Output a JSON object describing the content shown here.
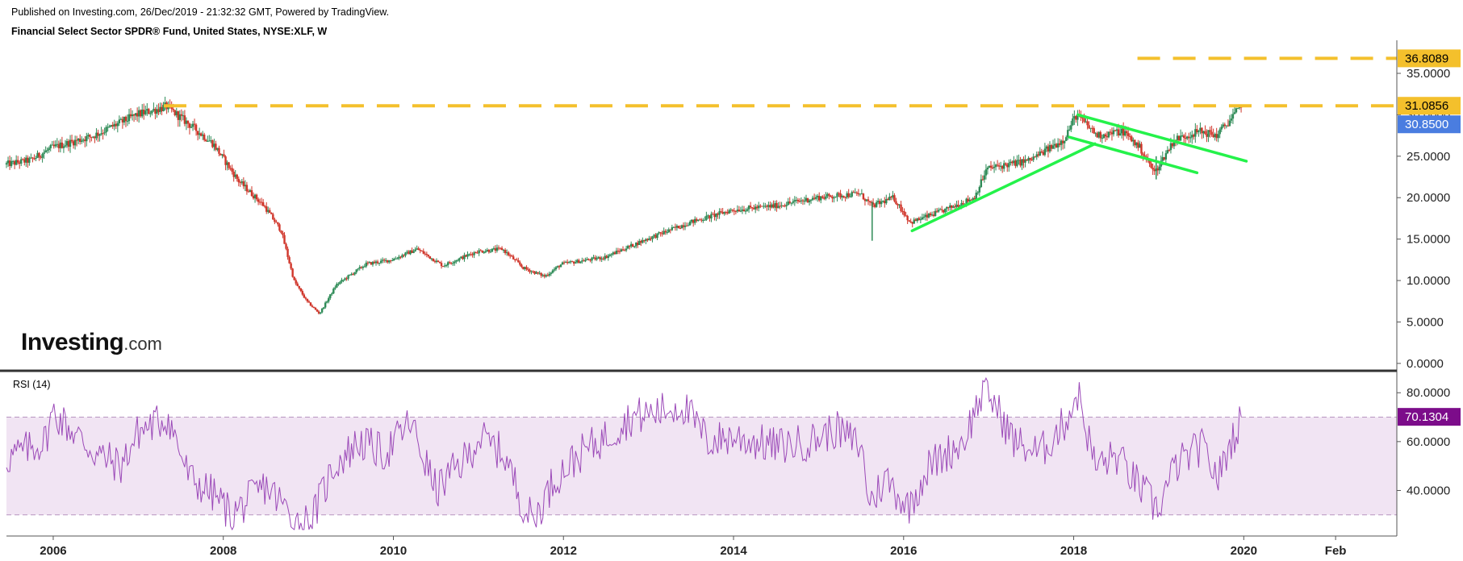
{
  "header": {
    "published": "Published on Investing.com, 26/Dec/2019 - 21:32:32 GMT, Powered by TradingView.",
    "title": "Financial Select Sector SPDR® Fund, United States, NYSE:XLF, W"
  },
  "logo": {
    "brand": "Investing",
    "suffix": ".com"
  },
  "colors": {
    "candle_up": "#2e8b57",
    "candle_down": "#d0352a",
    "resistance": "#f4c02c",
    "trend": "#24f24a",
    "price_tag": "#4a7de0",
    "rsi_line": "#9b49b8",
    "rsi_tag": "#7c0c8a",
    "rsi_band": "#f1e4f3",
    "rsi_bound": "#b895c0"
  },
  "chart_data": [
    {
      "type": "candlestick",
      "title": "Financial Select Sector SPDR® Fund, United States, NYSE:XLF, W",
      "x_range": [
        2005.45,
        2021.8
      ],
      "x_ticks": [
        {
          "x": 2006,
          "label": "2006"
        },
        {
          "x": 2008,
          "label": "2008"
        },
        {
          "x": 2010,
          "label": "2010"
        },
        {
          "x": 2012,
          "label": "2012"
        },
        {
          "x": 2014,
          "label": "2014"
        },
        {
          "x": 2016,
          "label": "2016"
        },
        {
          "x": 2018,
          "label": "2018"
        },
        {
          "x": 2020,
          "label": "2020"
        },
        {
          "x": 2021.08,
          "label": "Feb"
        }
      ],
      "ylim": [
        -0.5,
        38.5
      ],
      "y_ticks": [
        {
          "v": 0,
          "label": "0.0000"
        },
        {
          "v": 5,
          "label": "5.0000"
        },
        {
          "v": 10,
          "label": "10.0000"
        },
        {
          "v": 15,
          "label": "15.0000"
        },
        {
          "v": 20,
          "label": "20.0000"
        },
        {
          "v": 25,
          "label": "25.0000"
        },
        {
          "v": 30,
          "label": "30.0000"
        },
        {
          "v": 35,
          "label": "35.0000"
        }
      ],
      "price_path": [
        [
          2005.45,
          24.0
        ],
        [
          2005.75,
          24.5
        ],
        [
          2006.0,
          26.0
        ],
        [
          2006.5,
          27.5
        ],
        [
          2007.0,
          30.0
        ],
        [
          2007.35,
          31.0
        ],
        [
          2007.6,
          29.0
        ],
        [
          2007.9,
          26.5
        ],
        [
          2008.2,
          22.0
        ],
        [
          2008.5,
          19.0
        ],
        [
          2008.7,
          16.0
        ],
        [
          2008.85,
          10.0
        ],
        [
          2009.0,
          7.5
        ],
        [
          2009.15,
          6.0
        ],
        [
          2009.35,
          9.5
        ],
        [
          2009.7,
          12.0
        ],
        [
          2010.0,
          12.5
        ],
        [
          2010.3,
          13.8
        ],
        [
          2010.6,
          11.8
        ],
        [
          2011.0,
          13.5
        ],
        [
          2011.3,
          13.8
        ],
        [
          2011.55,
          11.5
        ],
        [
          2011.8,
          10.5
        ],
        [
          2012.0,
          12.0
        ],
        [
          2012.5,
          12.8
        ],
        [
          2013.0,
          15.0
        ],
        [
          2013.5,
          17.0
        ],
        [
          2014.0,
          18.5
        ],
        [
          2014.5,
          19.0
        ],
        [
          2015.0,
          20.0
        ],
        [
          2015.5,
          20.5
        ],
        [
          2015.65,
          19.0
        ],
        [
          2015.9,
          20.0
        ],
        [
          2016.1,
          17.0
        ],
        [
          2016.5,
          18.5
        ],
        [
          2016.85,
          20.0
        ],
        [
          2017.0,
          23.5
        ],
        [
          2017.5,
          24.5
        ],
        [
          2017.9,
          27.0
        ],
        [
          2018.05,
          30.0
        ],
        [
          2018.3,
          27.5
        ],
        [
          2018.6,
          28.0
        ],
        [
          2018.8,
          26.0
        ],
        [
          2018.97,
          23.0
        ],
        [
          2019.2,
          27.0
        ],
        [
          2019.5,
          28.0
        ],
        [
          2019.7,
          27.5
        ],
        [
          2019.98,
          30.85
        ]
      ],
      "resistance_levels": [
        {
          "value": 36.8089,
          "label": "36.8089",
          "from": 2018.75,
          "to": 2021.6
        },
        {
          "value": 31.0856,
          "label": "31.0856",
          "from": 2007.3,
          "to": 2021.6
        }
      ],
      "last_price": {
        "value": 30.85,
        "label": "30.8500"
      },
      "trend_lines": [
        {
          "from": [
            2016.1,
            16.0
          ],
          "to": [
            2018.25,
            26.5
          ]
        },
        {
          "from": [
            2018.05,
            30.0
          ],
          "to": [
            2020.03,
            24.4
          ]
        },
        {
          "from": [
            2017.95,
            27.3
          ],
          "to": [
            2019.45,
            23.0
          ]
        }
      ]
    },
    {
      "type": "line",
      "title": "RSI (14)",
      "x_range": [
        2005.45,
        2021.8
      ],
      "ylim": [
        23,
        88
      ],
      "y_ticks": [
        {
          "v": 40,
          "label": "40.0000"
        },
        {
          "v": 60,
          "label": "60.0000"
        },
        {
          "v": 80,
          "label": "80.0000"
        }
      ],
      "bounds": [
        30,
        70
      ],
      "last_value": {
        "value": 70.1304,
        "label": "70.1304"
      },
      "anchors": [
        [
          2005.45,
          53
        ],
        [
          2005.9,
          60
        ],
        [
          2006.0,
          72
        ],
        [
          2006.5,
          55
        ],
        [
          2006.8,
          50
        ],
        [
          2007.0,
          64
        ],
        [
          2007.35,
          70
        ],
        [
          2007.6,
          45
        ],
        [
          2007.9,
          38
        ],
        [
          2008.1,
          30
        ],
        [
          2008.5,
          42
        ],
        [
          2008.75,
          32
        ],
        [
          2008.9,
          26
        ],
        [
          2009.05,
          29
        ],
        [
          2009.3,
          50
        ],
        [
          2009.6,
          60
        ],
        [
          2009.9,
          55
        ],
        [
          2010.2,
          68
        ],
        [
          2010.5,
          40
        ],
        [
          2010.9,
          55
        ],
        [
          2011.0,
          62
        ],
        [
          2011.3,
          55
        ],
        [
          2011.55,
          32
        ],
        [
          2011.65,
          28
        ],
        [
          2011.9,
          45
        ],
        [
          2012.2,
          55
        ],
        [
          2012.5,
          62
        ],
        [
          2012.8,
          70
        ],
        [
          2013.1,
          72
        ],
        [
          2013.4,
          75
        ],
        [
          2013.7,
          60
        ],
        [
          2014.0,
          62
        ],
        [
          2014.5,
          58
        ],
        [
          2014.9,
          60
        ],
        [
          2015.2,
          65
        ],
        [
          2015.5,
          58
        ],
        [
          2015.6,
          35
        ],
        [
          2015.8,
          45
        ],
        [
          2016.05,
          33
        ],
        [
          2016.3,
          50
        ],
        [
          2016.7,
          60
        ],
        [
          2016.9,
          78
        ],
        [
          2017.0,
          80
        ],
        [
          2017.3,
          60
        ],
        [
          2017.6,
          55
        ],
        [
          2017.9,
          68
        ],
        [
          2018.05,
          80
        ],
        [
          2018.25,
          50
        ],
        [
          2018.5,
          54
        ],
        [
          2018.7,
          45
        ],
        [
          2018.85,
          38
        ],
        [
          2018.98,
          32
        ],
        [
          2019.2,
          50
        ],
        [
          2019.5,
          58
        ],
        [
          2019.7,
          45
        ],
        [
          2019.85,
          60
        ],
        [
          2019.98,
          70.13
        ]
      ]
    }
  ]
}
